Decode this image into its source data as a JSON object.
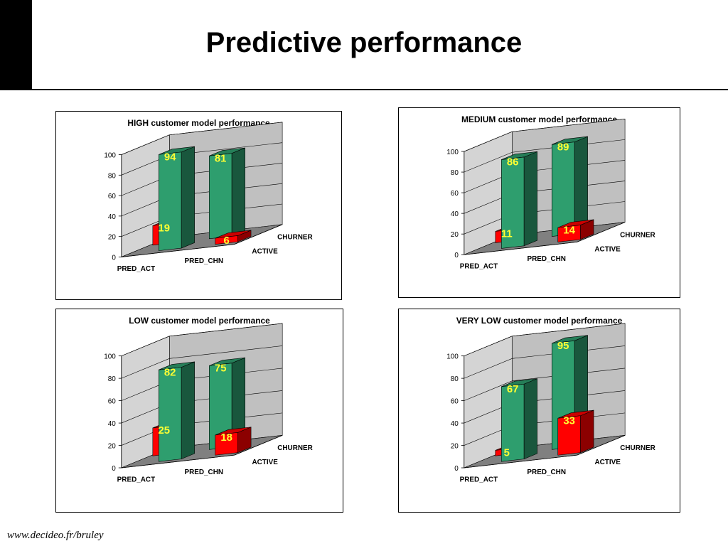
{
  "slide": {
    "title": "Predictive performance",
    "footer": "www.decideo.fr/bruley"
  },
  "colors": {
    "active_bar": "#2e9e6e",
    "churner_bar": "#ff0000",
    "value_label": "#ffff33",
    "wall": "#c0c0c0",
    "floor": "#808080"
  },
  "chart_data": [
    {
      "type": "bar",
      "title": "HIGH customer model performance",
      "categories": [
        "PRED_ACT",
        "PRED_CHN"
      ],
      "series": [
        {
          "name": "ACTIVE",
          "values": [
            94,
            6
          ]
        },
        {
          "name": "CHURNER",
          "values": [
            19,
            81
          ]
        }
      ],
      "yticks": [
        "0",
        "20",
        "40",
        "60",
        "80",
        "100"
      ],
      "ylim": [
        0,
        100
      ],
      "grid": true
    },
    {
      "type": "bar",
      "title": "MEDIUM customer model performance",
      "categories": [
        "PRED_ACT",
        "PRED_CHN"
      ],
      "series": [
        {
          "name": "ACTIVE",
          "values": [
            86,
            14
          ]
        },
        {
          "name": "CHURNER",
          "values": [
            11,
            89
          ]
        }
      ],
      "yticks": [
        "0",
        "20",
        "40",
        "60",
        "80",
        "100"
      ],
      "ylim": [
        0,
        100
      ],
      "grid": true
    },
    {
      "type": "bar",
      "title": "LOW customer model performance",
      "categories": [
        "PRED_ACT",
        "PRED_CHN"
      ],
      "series": [
        {
          "name": "ACTIVE",
          "values": [
            82,
            18
          ]
        },
        {
          "name": "CHURNER",
          "values": [
            25,
            75
          ]
        }
      ],
      "yticks": [
        "0",
        "20",
        "40",
        "60",
        "80",
        "100"
      ],
      "ylim": [
        0,
        100
      ],
      "grid": true
    },
    {
      "type": "bar",
      "title": "VERY LOW customer model performance",
      "categories": [
        "PRED_ACT",
        "PRED_CHN"
      ],
      "series": [
        {
          "name": "ACTIVE",
          "values": [
            67,
            33
          ]
        },
        {
          "name": "CHURNER",
          "values": [
            5,
            95
          ]
        }
      ],
      "yticks": [
        "0",
        "20",
        "40",
        "60",
        "80",
        "100"
      ],
      "ylim": [
        0,
        100
      ],
      "grid": true
    }
  ]
}
